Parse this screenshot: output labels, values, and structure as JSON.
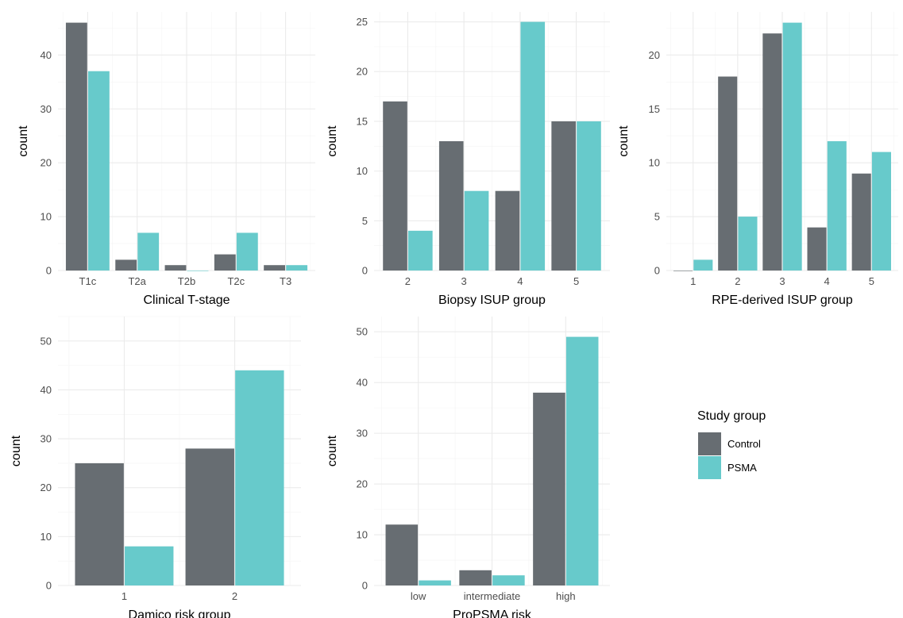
{
  "legend": {
    "title": "Study group",
    "entries": [
      {
        "label": "Control",
        "color": "#676d72"
      },
      {
        "label": "PSMA",
        "color": "#67cacb"
      }
    ]
  },
  "chart_data": [
    {
      "type": "bar",
      "xlabel": "Clinical T-stage",
      "ylabel": "count",
      "categories": [
        "T1c",
        "T2a",
        "T2b",
        "T2c",
        "T3"
      ],
      "series": [
        {
          "name": "Control",
          "values": [
            46,
            2,
            1,
            3,
            1
          ]
        },
        {
          "name": "PSMA",
          "values": [
            37,
            7,
            0,
            7,
            1
          ]
        }
      ],
      "yticks": [
        0,
        10,
        20,
        30,
        40
      ],
      "ylim": [
        0,
        48
      ]
    },
    {
      "type": "bar",
      "xlabel": "Biopsy ISUP group",
      "ylabel": "count",
      "categories": [
        "2",
        "3",
        "4",
        "5"
      ],
      "series": [
        {
          "name": "Control",
          "values": [
            17,
            13,
            8,
            15
          ]
        },
        {
          "name": "PSMA",
          "values": [
            4,
            8,
            25,
            15
          ]
        }
      ],
      "yticks": [
        0,
        5,
        10,
        15,
        20,
        25
      ],
      "ylim": [
        0,
        26
      ]
    },
    {
      "type": "bar",
      "xlabel": "RPE-derived ISUP group",
      "ylabel": "count",
      "categories": [
        "1",
        "2",
        "3",
        "4",
        "5"
      ],
      "series": [
        {
          "name": "Control",
          "values": [
            0,
            18,
            22,
            4,
            9
          ]
        },
        {
          "name": "PSMA",
          "values": [
            1,
            5,
            23,
            12,
            11
          ]
        }
      ],
      "yticks": [
        0,
        5,
        10,
        15,
        20
      ],
      "ylim": [
        0,
        24
      ]
    },
    {
      "type": "bar",
      "xlabel": "Damico risk group",
      "ylabel": "count",
      "categories": [
        "1",
        "2"
      ],
      "series": [
        {
          "name": "Control",
          "values": [
            25,
            28
          ]
        },
        {
          "name": "PSMA",
          "values": [
            8,
            44
          ]
        }
      ],
      "yticks": [
        0,
        10,
        20,
        30,
        40,
        50
      ],
      "ylim": [
        0,
        55
      ]
    },
    {
      "type": "bar",
      "xlabel": "ProPSMA risk",
      "ylabel": "count",
      "categories": [
        "low",
        "intermediate",
        "high"
      ],
      "series": [
        {
          "name": "Control",
          "values": [
            12,
            3,
            38
          ]
        },
        {
          "name": "PSMA",
          "values": [
            1,
            2,
            49
          ]
        }
      ],
      "yticks": [
        0,
        10,
        20,
        30,
        40,
        50
      ],
      "ylim": [
        0,
        53
      ]
    }
  ]
}
